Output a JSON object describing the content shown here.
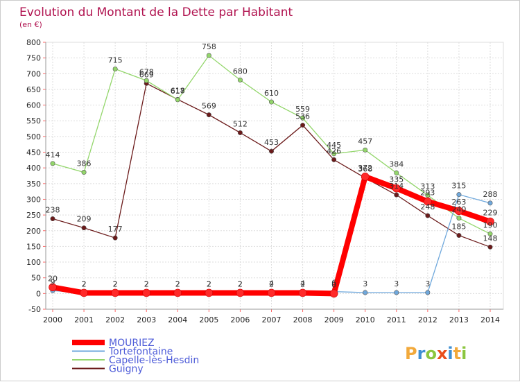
{
  "chart_data": {
    "type": "line",
    "title": "Evolution du Montant de la Dette par Habitant",
    "subtitle": "(en €)",
    "xlabel": "",
    "ylabel": "",
    "ylim": [
      -50,
      800
    ],
    "ytick_step": 50,
    "grid": true,
    "legend_position": "bottom-left",
    "categories": [
      "2000",
      "2001",
      "2002",
      "2003",
      "2004",
      "2005",
      "2006",
      "2007",
      "2008",
      "2009",
      "2010",
      "2011",
      "2012",
      "2013",
      "2014"
    ],
    "series": [
      {
        "name": "MOURIEZ",
        "color": "#ff0000",
        "emphasis": true,
        "values": [
          20,
          2,
          2,
          2,
          2,
          2,
          2,
          2,
          2,
          0,
          372,
          335,
          293,
          263,
          229
        ]
      },
      {
        "name": "Tortefontaine",
        "color": "#6fa8dc",
        "emphasis": false,
        "values": [
          9,
          2,
          2,
          2,
          2,
          2,
          2,
          4,
          4,
          6,
          3,
          3,
          3,
          315,
          288
        ]
      },
      {
        "name": "Capelle-lès-Hesdin",
        "color": "#93d66b",
        "emphasis": false,
        "values": [
          414,
          386,
          715,
          678,
          617,
          758,
          680,
          610,
          559,
          445,
          457,
          384,
          313,
          240,
          190
        ]
      },
      {
        "name": "Guigny",
        "color": "#6b1a1a",
        "emphasis": false,
        "values": [
          238,
          209,
          177,
          669,
          618,
          569,
          512,
          453,
          536,
          426,
          368,
          314,
          248,
          185,
          148
        ]
      }
    ]
  },
  "branding": {
    "logo_text": "Proxiti"
  }
}
